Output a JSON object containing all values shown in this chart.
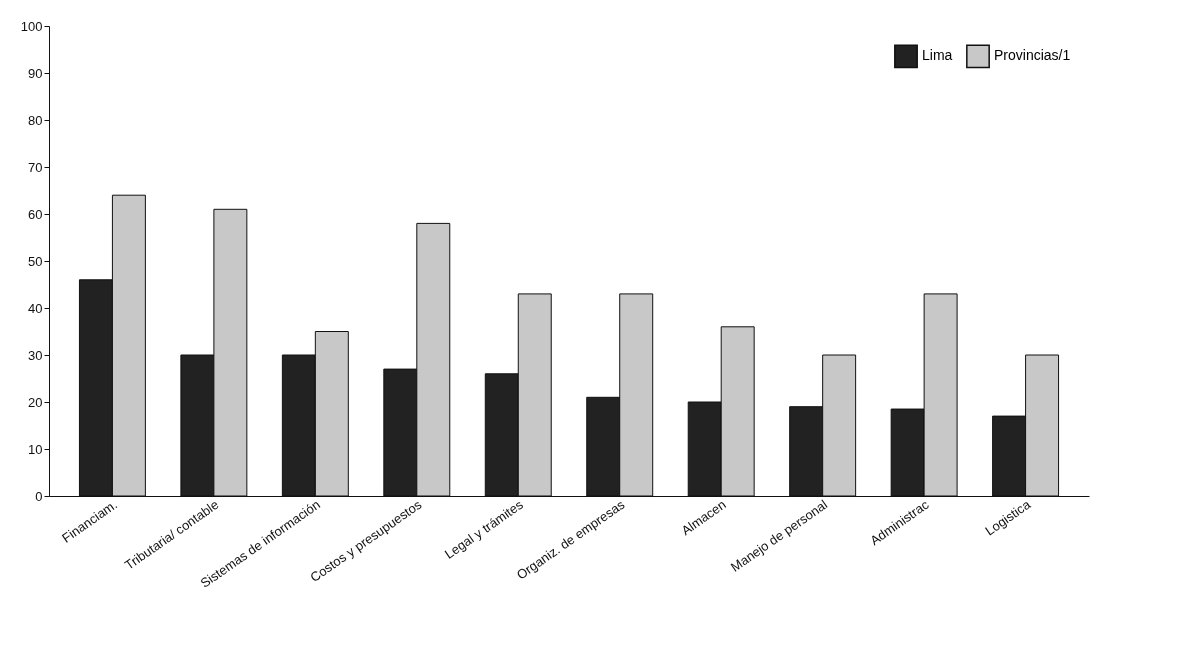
{
  "chart_data": {
    "type": "bar",
    "categories": [
      "Financiam.",
      "Tributaria/ contable",
      "Sistemas de información",
      "Costos y presupuestos",
      "Legal y trámites",
      "Organiz. de empresas",
      "Almacen",
      "Manejo de personal",
      "Administrac",
      "Logistica"
    ],
    "series": [
      {
        "name": "Lima",
        "color": "#222222",
        "values": [
          46,
          30,
          30,
          27,
          26,
          21,
          20,
          19,
          18.5,
          17
        ]
      },
      {
        "name": "Provincias/1",
        "color": "#c8c8c8",
        "values": [
          64,
          61,
          35,
          58,
          43,
          43,
          36,
          30,
          43,
          30
        ]
      }
    ],
    "ylim": [
      0,
      100
    ],
    "yticks": [
      0,
      10,
      20,
      30,
      40,
      50,
      60,
      70,
      80,
      90,
      100
    ],
    "grid": false,
    "legend": "top right"
  }
}
